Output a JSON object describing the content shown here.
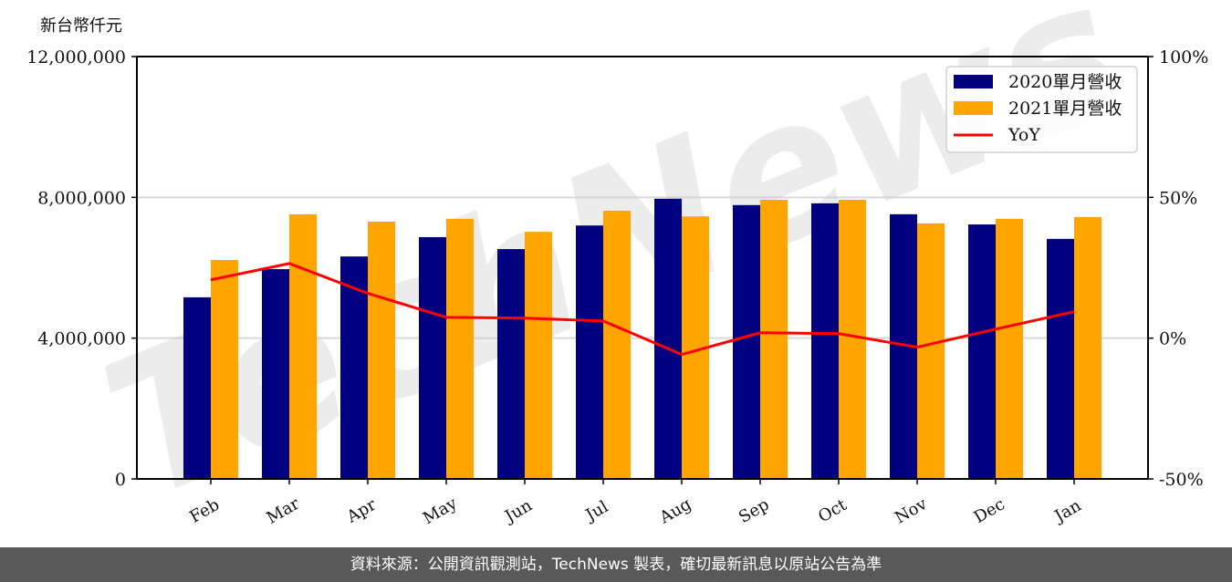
{
  "chart_data": {
    "type": "bar",
    "title": "",
    "ylabel": "新台幣仟元",
    "xlabel": "",
    "categories": [
      "Feb",
      "Mar",
      "Apr",
      "May",
      "Jun",
      "Jul",
      "Aug",
      "Sep",
      "Oct",
      "Nov",
      "Dec",
      "Jan"
    ],
    "series": [
      {
        "name": "2020單月營收",
        "type": "bar",
        "color": "#000080",
        "values": [
          5160000,
          5960000,
          6320000,
          6870000,
          6530000,
          7200000,
          7960000,
          7780000,
          7830000,
          7520000,
          7230000,
          6820000
        ]
      },
      {
        "name": "2021單月營收",
        "type": "bar",
        "color": "#FFA500",
        "values": [
          6220000,
          7520000,
          7310000,
          7390000,
          7020000,
          7620000,
          7460000,
          7930000,
          7930000,
          7260000,
          7390000,
          7440000
        ]
      },
      {
        "name": "YoY",
        "type": "line",
        "color": "#FF0000",
        "axis": "right",
        "values": [
          20.7,
          26.5,
          15.9,
          7.4,
          7.1,
          6.1,
          -5.8,
          1.9,
          1.6,
          -3.2,
          3.2,
          9.4
        ]
      }
    ],
    "ylim": [
      0,
      12000000
    ],
    "yticks": [
      "0",
      "4,000,000",
      "8,000,000",
      "12,000,000"
    ],
    "y2lim": [
      -50,
      100
    ],
    "y2ticks": [
      "-50%",
      "0%",
      "50%",
      "100%"
    ],
    "grid": "horizontal",
    "legend_position": "upper right"
  },
  "header": {
    "unit_label": "新台幣仟元"
  },
  "watermark": "TechNews",
  "footer": {
    "text": "資料來源：公開資訊觀測站，TechNews 製表，確切最新訊息以原站公告為準"
  }
}
